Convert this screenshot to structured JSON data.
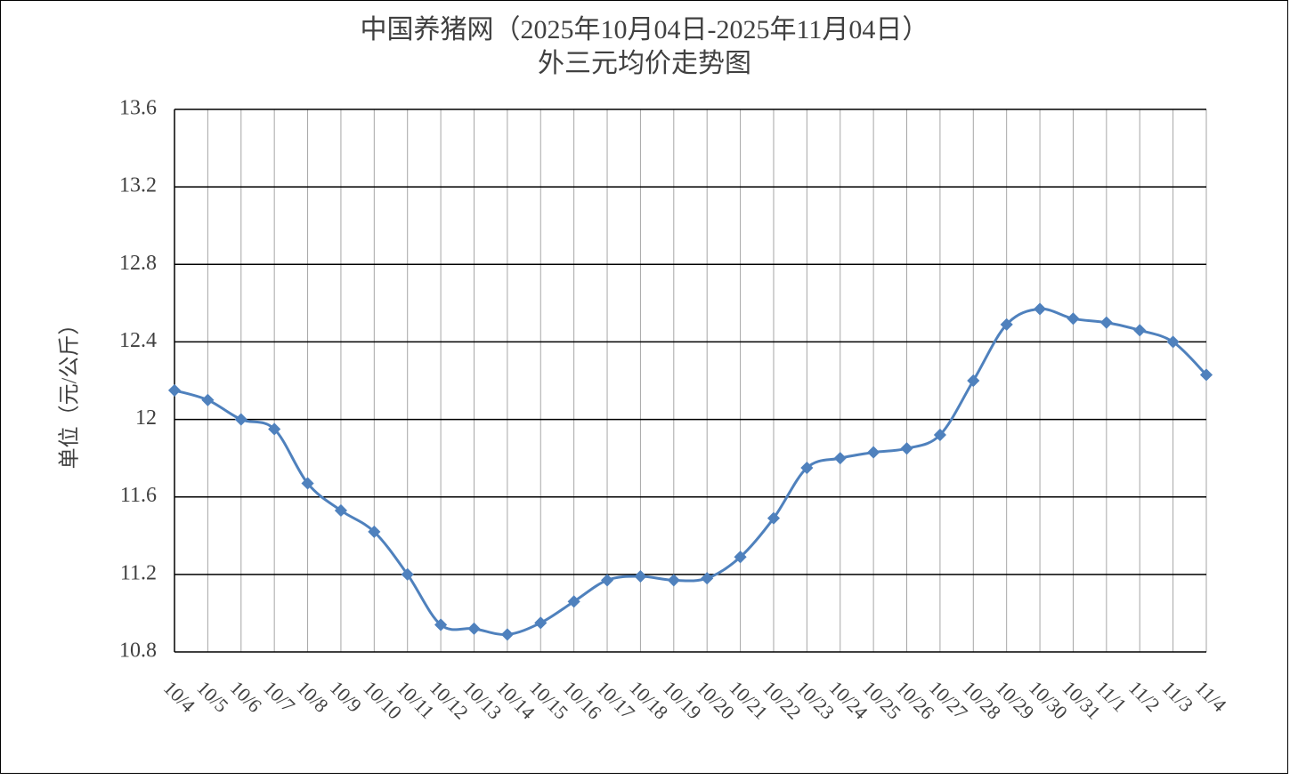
{
  "chart_data": {
    "type": "line",
    "title": "中国养猪网（2025年10月04日-2025年11月04日）",
    "subtitle": "外三元均价走势图",
    "y_label": "单位（元/公斤）",
    "categories": [
      "10/4",
      "10/5",
      "10/6",
      "10/7",
      "10/8",
      "10/9",
      "10/10",
      "10/11",
      "10/12",
      "10/13",
      "10/14",
      "10/15",
      "10/16",
      "10/17",
      "10/18",
      "10/19",
      "10/20",
      "10/21",
      "10/22",
      "10/23",
      "10/24",
      "10/25",
      "10/26",
      "10/27",
      "10/28",
      "10/29",
      "10/30",
      "10/31",
      "11/1",
      "11/2",
      "11/3",
      "11/4"
    ],
    "series": [
      {
        "name": "外三元",
        "color": "#4f81bd",
        "values": [
          12.15,
          12.1,
          12.0,
          11.95,
          11.67,
          11.53,
          11.42,
          11.2,
          10.94,
          10.92,
          10.89,
          10.95,
          11.06,
          11.17,
          11.19,
          11.17,
          11.18,
          11.29,
          11.49,
          11.75,
          11.8,
          11.83,
          11.85,
          11.92,
          12.2,
          12.49,
          12.57,
          12.52,
          12.5,
          12.46,
          12.4,
          12.23
        ]
      }
    ],
    "ylim": [
      10.8,
      13.6
    ],
    "yticks": [
      10.8,
      11.2,
      11.6,
      12,
      12.4,
      12.8,
      13.2,
      13.6
    ],
    "grid": true
  }
}
